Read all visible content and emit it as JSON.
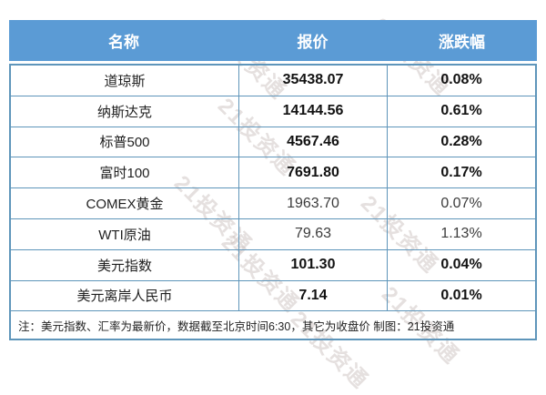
{
  "watermark": {
    "text": "21投资通"
  },
  "colors": {
    "header_bg": "#5B9BD5",
    "header_text": "#FFFFFF",
    "border": "#5E95BA",
    "body_text": "#1F1F1F"
  },
  "table": {
    "headers": {
      "name": "名称",
      "quote": "报价",
      "change": "涨跌幅"
    },
    "rows": [
      {
        "name": "道琼斯",
        "quote": "35438.07",
        "change": "0.08%"
      },
      {
        "name": "纳斯达克",
        "quote": "14144.56",
        "change": "0.61%"
      },
      {
        "name": "标普500",
        "quote": "4567.46",
        "change": "0.28%"
      },
      {
        "name": "富时100",
        "quote": "7691.80",
        "change": "0.17%"
      },
      {
        "name": "COMEX黄金",
        "quote": "1963.70",
        "change": "0.07%"
      },
      {
        "name": "WTI原油",
        "quote": "79.63",
        "change": "1.13%"
      },
      {
        "name": "美元指数",
        "quote": "101.30",
        "change": "0.04%"
      },
      {
        "name": "美元离岸人民币",
        "quote": "7.14",
        "change": "0.01%"
      }
    ],
    "note": "注：美元指数、汇率为最新价，数据截至北京时间6:30，其它为收盘价 制图：21投资通"
  },
  "chart_data": {
    "type": "table",
    "title": "",
    "columns": [
      "名称",
      "报价",
      "涨跌幅"
    ],
    "rows": [
      {
        "name": "道琼斯",
        "quote": 35438.07,
        "change_pct": 0.08
      },
      {
        "name": "纳斯达克",
        "quote": 14144.56,
        "change_pct": 0.61
      },
      {
        "name": "标普500",
        "quote": 4567.46,
        "change_pct": 0.28
      },
      {
        "name": "富时100",
        "quote": 7691.8,
        "change_pct": 0.17
      },
      {
        "name": "COMEX黄金",
        "quote": 1963.7,
        "change_pct": 0.07
      },
      {
        "name": "WTI原油",
        "quote": 79.63,
        "change_pct": 1.13
      },
      {
        "name": "美元指数",
        "quote": 101.3,
        "change_pct": 0.04
      },
      {
        "name": "美元离岸人民币",
        "quote": 7.14,
        "change_pct": 0.01
      }
    ],
    "note": "注：美元指数、汇率为最新价，数据截至北京时间6:30，其它为收盘价 制图：21投资通",
    "watermark": "21投资通"
  }
}
